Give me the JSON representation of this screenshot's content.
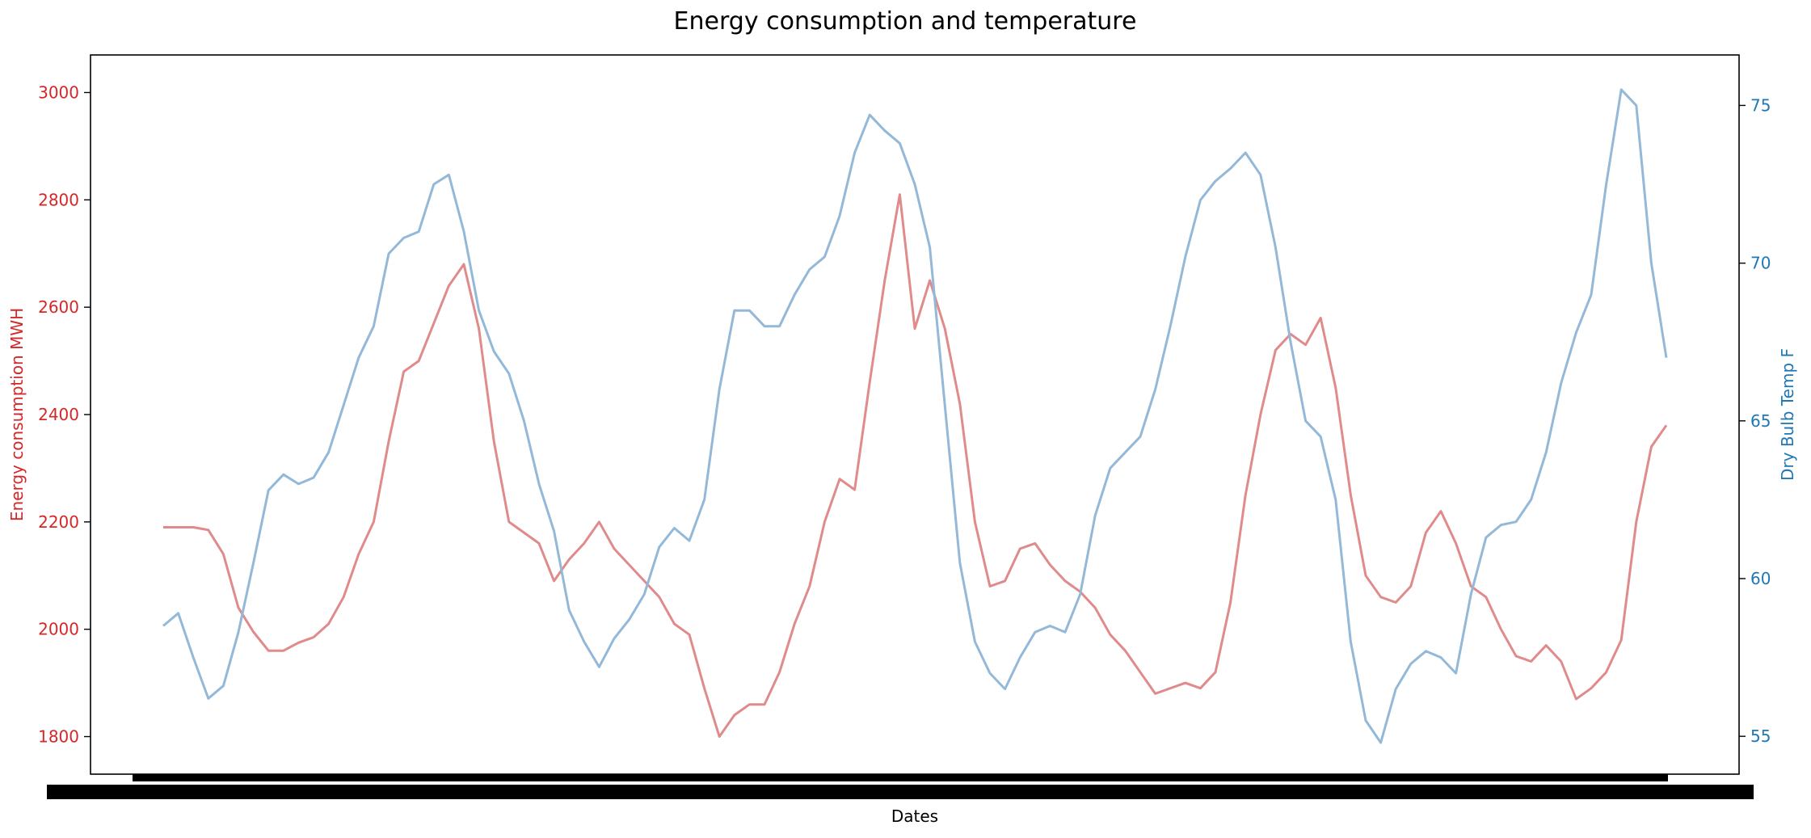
{
  "chart_data": {
    "type": "line",
    "title": "Energy consumption and temperature",
    "xlabel": "Dates",
    "x_tick_labels_note": "",
    "y_left": {
      "label": "Energy consumption MWH",
      "color": "#d62728",
      "lim": [
        1730,
        3070
      ],
      "ticks": [
        1800,
        2000,
        2200,
        2400,
        2600,
        2800,
        3000
      ]
    },
    "y_right": {
      "label": "Dry Bulb Temp F",
      "color": "#1f77b4",
      "lim": [
        53.8,
        76.6
      ],
      "ticks": [
        55,
        60,
        65,
        70,
        75
      ]
    },
    "x_range": [
      0,
      100
    ],
    "series": [
      {
        "axis": "left",
        "color": "#e08b8b",
        "points": [
          [
            0,
            2190
          ],
          [
            2,
            2190
          ],
          [
            3,
            2185
          ],
          [
            4,
            2140
          ],
          [
            5,
            2040
          ],
          [
            6,
            1995
          ],
          [
            7,
            1960
          ],
          [
            8,
            1960
          ],
          [
            9,
            1975
          ],
          [
            10,
            1985
          ],
          [
            11,
            2010
          ],
          [
            12,
            2060
          ],
          [
            13,
            2140
          ],
          [
            14,
            2200
          ],
          [
            15,
            2350
          ],
          [
            16,
            2480
          ],
          [
            17,
            2500
          ],
          [
            18,
            2570
          ],
          [
            19,
            2640
          ],
          [
            20,
            2680
          ],
          [
            21,
            2560
          ],
          [
            22,
            2350
          ],
          [
            23,
            2200
          ],
          [
            24,
            2180
          ],
          [
            25,
            2160
          ],
          [
            26,
            2090
          ],
          [
            27,
            2130
          ],
          [
            28,
            2160
          ],
          [
            29,
            2200
          ],
          [
            30,
            2150
          ],
          [
            31,
            2120
          ],
          [
            32,
            2090
          ],
          [
            33,
            2060
          ],
          [
            34,
            2010
          ],
          [
            35,
            1990
          ],
          [
            36,
            1890
          ],
          [
            37,
            1800
          ],
          [
            38,
            1840
          ],
          [
            39,
            1860
          ],
          [
            40,
            1860
          ],
          [
            41,
            1920
          ],
          [
            42,
            2010
          ],
          [
            43,
            2080
          ],
          [
            44,
            2200
          ],
          [
            45,
            2280
          ],
          [
            46,
            2260
          ],
          [
            47,
            2460
          ],
          [
            48,
            2650
          ],
          [
            49,
            2810
          ],
          [
            50,
            2560
          ],
          [
            51,
            2650
          ],
          [
            52,
            2560
          ],
          [
            53,
            2420
          ],
          [
            54,
            2200
          ],
          [
            55,
            2080
          ],
          [
            56,
            2090
          ],
          [
            57,
            2150
          ],
          [
            58,
            2160
          ],
          [
            59,
            2120
          ],
          [
            60,
            2090
          ],
          [
            61,
            2070
          ],
          [
            62,
            2040
          ],
          [
            63,
            1990
          ],
          [
            64,
            1960
          ],
          [
            65,
            1920
          ],
          [
            66,
            1880
          ],
          [
            67,
            1890
          ],
          [
            68,
            1900
          ],
          [
            69,
            1890
          ],
          [
            70,
            1920
          ],
          [
            71,
            2050
          ],
          [
            72,
            2250
          ],
          [
            73,
            2400
          ],
          [
            74,
            2520
          ],
          [
            75,
            2550
          ],
          [
            76,
            2530
          ],
          [
            77,
            2580
          ],
          [
            78,
            2450
          ],
          [
            79,
            2250
          ],
          [
            80,
            2100
          ],
          [
            81,
            2060
          ],
          [
            82,
            2050
          ],
          [
            83,
            2080
          ],
          [
            84,
            2180
          ],
          [
            85,
            2220
          ],
          [
            86,
            2160
          ],
          [
            87,
            2080
          ],
          [
            88,
            2060
          ],
          [
            89,
            2000
          ],
          [
            90,
            1950
          ],
          [
            91,
            1940
          ],
          [
            92,
            1970
          ],
          [
            93,
            1940
          ],
          [
            94,
            1870
          ],
          [
            95,
            1890
          ],
          [
            96,
            1920
          ],
          [
            97,
            1980
          ],
          [
            98,
            2200
          ],
          [
            99,
            2340
          ],
          [
            100,
            2380
          ]
        ]
      },
      {
        "axis": "right",
        "color": "#94b8d8",
        "points": [
          [
            0,
            58.5
          ],
          [
            1,
            58.9
          ],
          [
            2,
            57.5
          ],
          [
            3,
            56.2
          ],
          [
            4,
            56.6
          ],
          [
            5,
            58.3
          ],
          [
            6,
            60.5
          ],
          [
            7,
            62.8
          ],
          [
            8,
            63.3
          ],
          [
            9,
            63.0
          ],
          [
            10,
            63.2
          ],
          [
            11,
            64.0
          ],
          [
            12,
            65.5
          ],
          [
            13,
            67.0
          ],
          [
            14,
            68.0
          ],
          [
            15,
            70.3
          ],
          [
            16,
            70.8
          ],
          [
            17,
            71.0
          ],
          [
            18,
            72.5
          ],
          [
            19,
            72.8
          ],
          [
            20,
            71.0
          ],
          [
            21,
            68.5
          ],
          [
            22,
            67.2
          ],
          [
            23,
            66.5
          ],
          [
            24,
            65.0
          ],
          [
            25,
            63.0
          ],
          [
            26,
            61.5
          ],
          [
            27,
            59.0
          ],
          [
            28,
            58.0
          ],
          [
            29,
            57.2
          ],
          [
            30,
            58.1
          ],
          [
            31,
            58.7
          ],
          [
            32,
            59.5
          ],
          [
            33,
            61.0
          ],
          [
            34,
            61.6
          ],
          [
            35,
            61.2
          ],
          [
            36,
            62.5
          ],
          [
            37,
            66.0
          ],
          [
            38,
            68.5
          ],
          [
            39,
            68.5
          ],
          [
            40,
            68.0
          ],
          [
            41,
            68.0
          ],
          [
            42,
            69.0
          ],
          [
            43,
            69.8
          ],
          [
            44,
            70.2
          ],
          [
            45,
            71.5
          ],
          [
            46,
            73.5
          ],
          [
            47,
            74.7
          ],
          [
            48,
            74.2
          ],
          [
            49,
            73.8
          ],
          [
            50,
            72.5
          ],
          [
            51,
            70.5
          ],
          [
            52,
            65.5
          ],
          [
            53,
            60.5
          ],
          [
            54,
            58.0
          ],
          [
            55,
            57.0
          ],
          [
            56,
            56.5
          ],
          [
            57,
            57.5
          ],
          [
            58,
            58.3
          ],
          [
            59,
            58.5
          ],
          [
            60,
            58.3
          ],
          [
            61,
            59.5
          ],
          [
            62,
            62.0
          ],
          [
            63,
            63.5
          ],
          [
            64,
            64.0
          ],
          [
            65,
            64.5
          ],
          [
            66,
            66.0
          ],
          [
            67,
            68.0
          ],
          [
            68,
            70.2
          ],
          [
            69,
            72.0
          ],
          [
            70,
            72.6
          ],
          [
            71,
            73.0
          ],
          [
            72,
            73.5
          ],
          [
            73,
            72.8
          ],
          [
            74,
            70.5
          ],
          [
            75,
            67.5
          ],
          [
            76,
            65.0
          ],
          [
            77,
            64.5
          ],
          [
            78,
            62.5
          ],
          [
            79,
            58.0
          ],
          [
            80,
            55.5
          ],
          [
            81,
            54.8
          ],
          [
            82,
            56.5
          ],
          [
            83,
            57.3
          ],
          [
            84,
            57.7
          ],
          [
            85,
            57.5
          ],
          [
            86,
            57.0
          ],
          [
            87,
            59.5
          ],
          [
            88,
            61.3
          ],
          [
            89,
            61.7
          ],
          [
            90,
            61.8
          ],
          [
            91,
            62.5
          ],
          [
            92,
            64.0
          ],
          [
            93,
            66.2
          ],
          [
            94,
            67.8
          ],
          [
            95,
            69.0
          ],
          [
            96,
            72.5
          ],
          [
            97,
            75.5
          ],
          [
            98,
            75.0
          ],
          [
            99,
            70.0
          ],
          [
            100,
            67.0
          ]
        ]
      }
    ]
  }
}
